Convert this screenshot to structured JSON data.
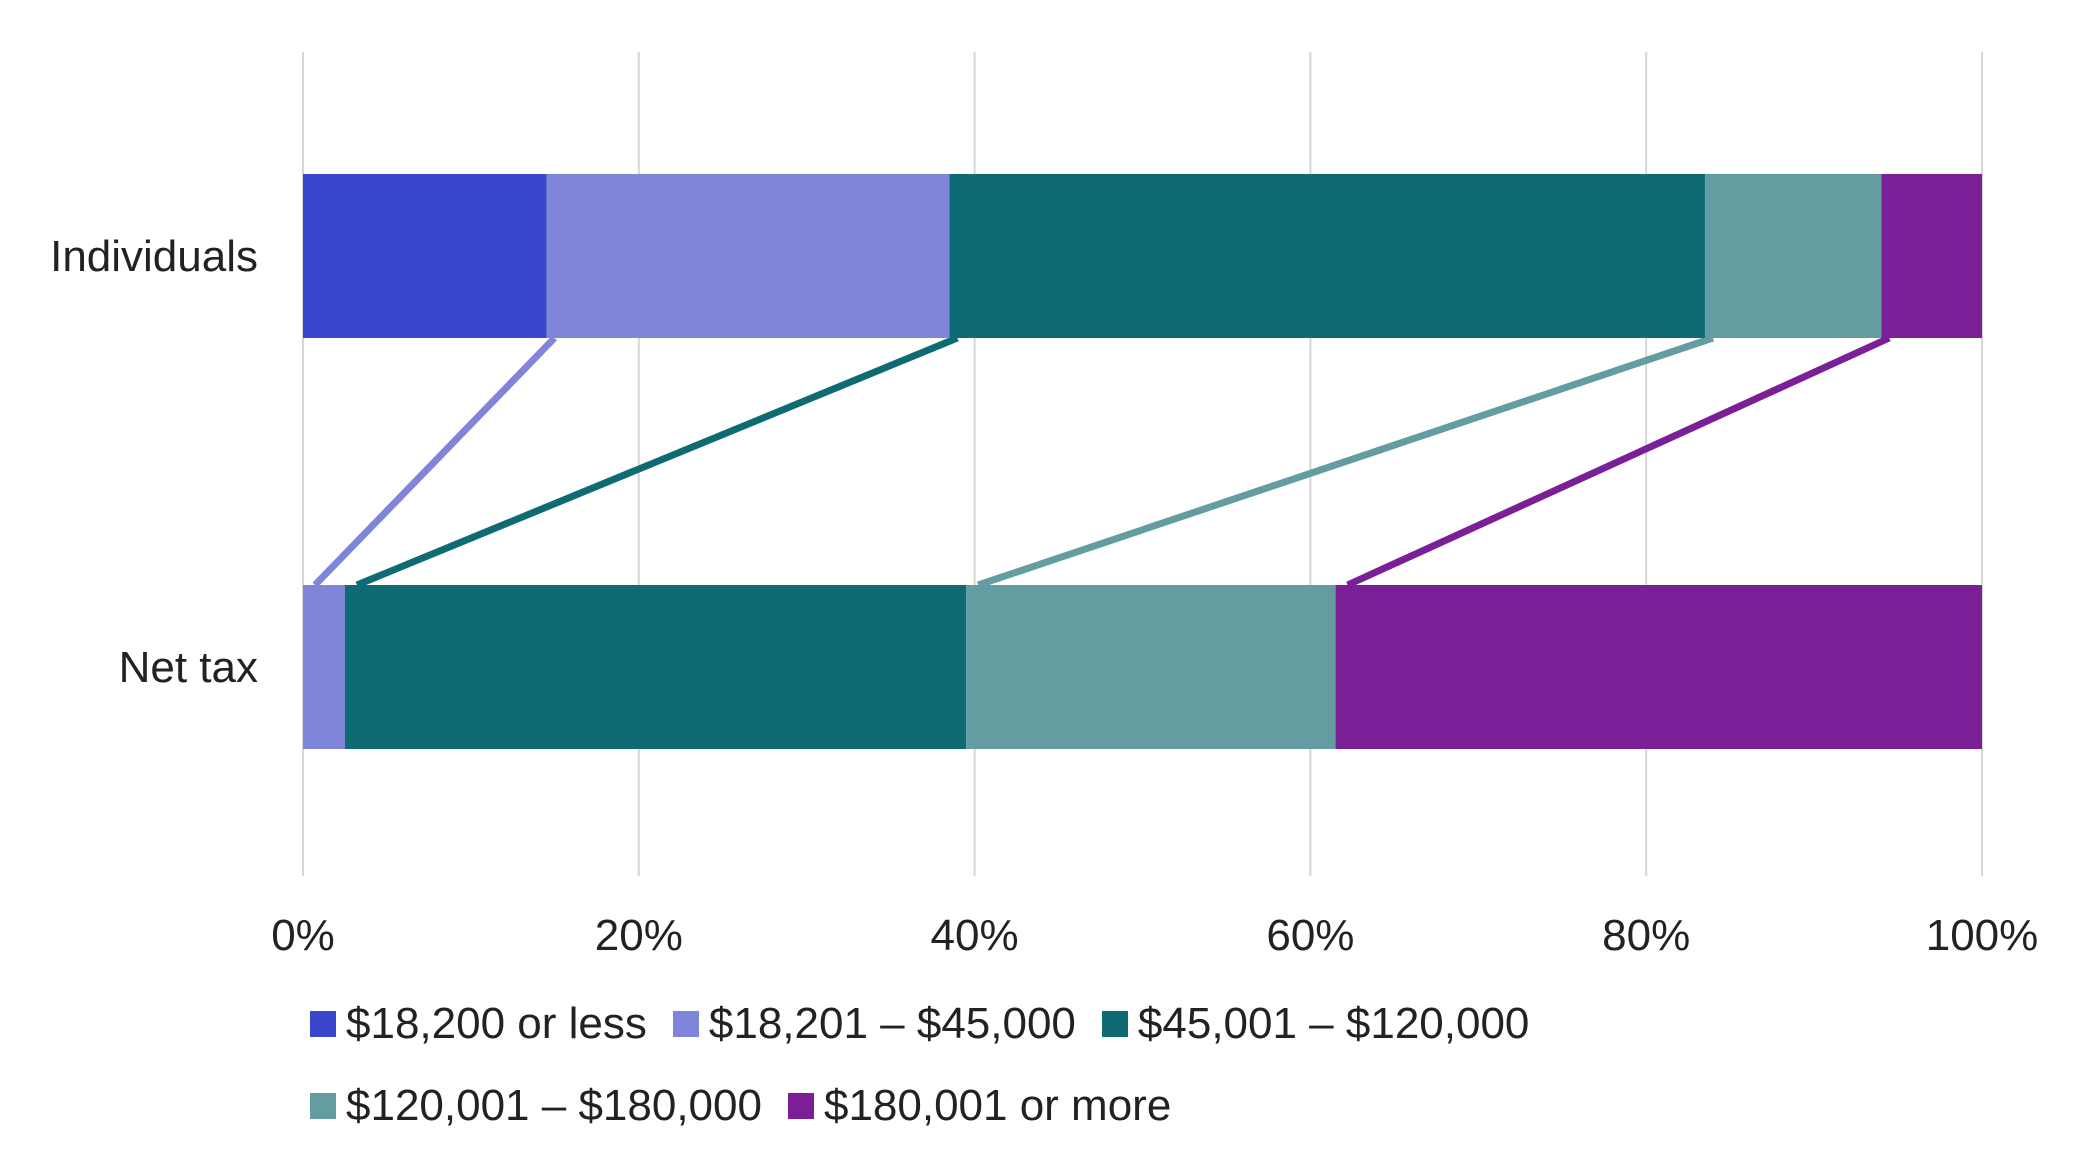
{
  "chart_data": {
    "type": "bar",
    "orientation": "horizontal",
    "stacked": true,
    "categories": [
      "Individuals",
      "Net tax"
    ],
    "series": [
      {
        "name": "$18,200 or less",
        "color": "#3a46cc",
        "values": [
          14.5,
          0
        ]
      },
      {
        "name": "$18,201 – $45,000",
        "color": "#7f86d9",
        "values": [
          24,
          2.5
        ]
      },
      {
        "name": "$45,001 – $120,000",
        "color": "#0f6b73",
        "values": [
          45,
          37
        ]
      },
      {
        "name": "$120,001 – $180,000",
        "color": "#639ca1",
        "values": [
          10.5,
          22
        ]
      },
      {
        "name": "$180,001 or more",
        "color": "#7a1f96",
        "values": [
          6,
          38.5
        ]
      }
    ],
    "xlim": [
      0,
      100
    ],
    "xticks": [
      0,
      20,
      40,
      60,
      80,
      100
    ],
    "xtick_labels": [
      "0%",
      "20%",
      "40%",
      "60%",
      "80%",
      "100%"
    ],
    "grid": "vertical",
    "connector_lines": true,
    "legend_position": "bottom"
  }
}
